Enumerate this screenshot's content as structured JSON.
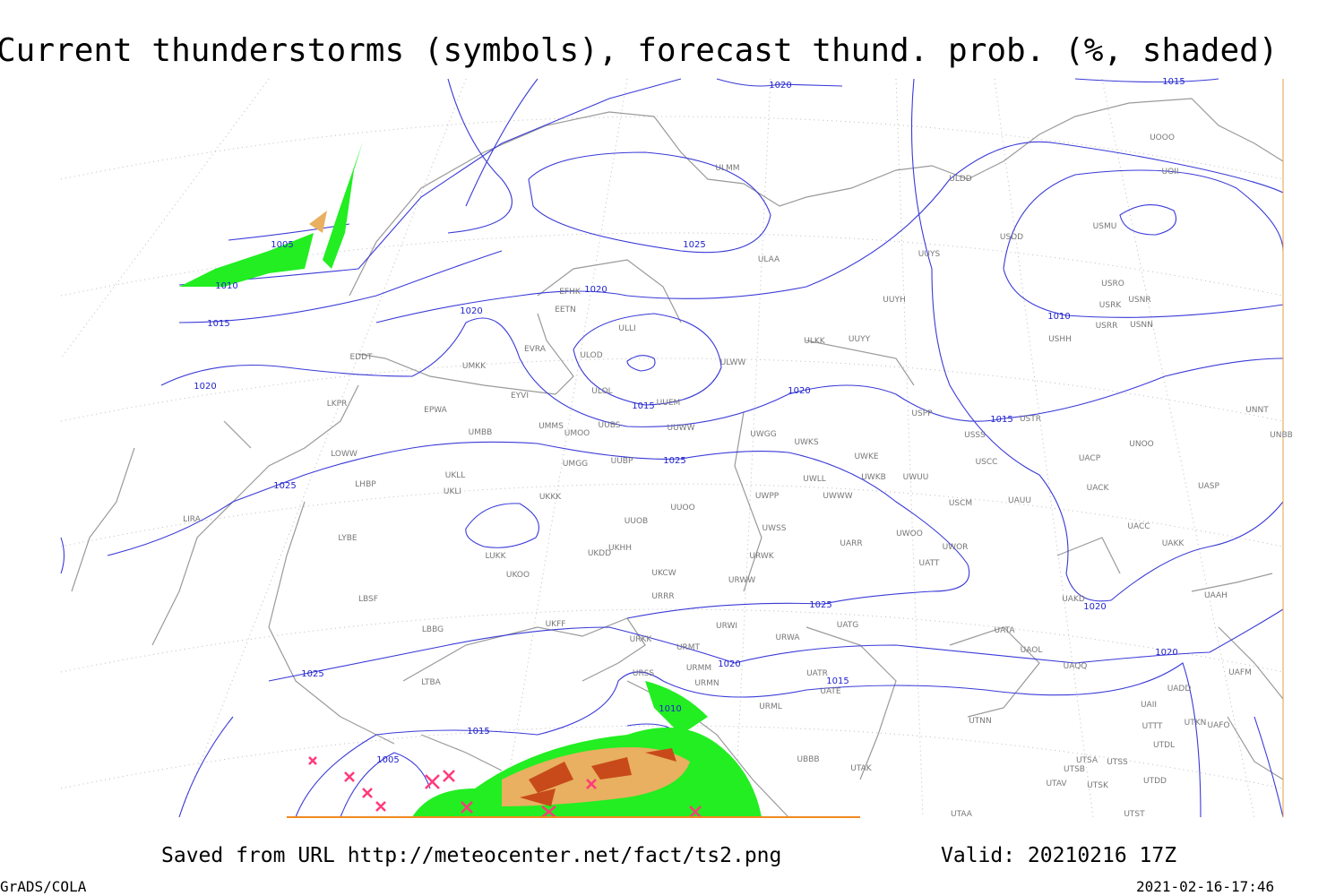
{
  "title": "Current thunderstorms (symbols), forecast thund. prob. (%, shaded)",
  "footer": {
    "source": "Saved from URL http://meteocenter.net/fact/ts2.png",
    "valid": "Valid: 20210216 17Z",
    "software": "GrADS/COLA",
    "timestamp": "2021-02-16-17:46"
  },
  "isobar_labels": [
    1020,
    1015,
    1005,
    1010,
    1015,
    1020,
    1020,
    1025,
    1020,
    1015,
    1020,
    1015,
    1010,
    1025,
    1025,
    1025,
    1020,
    1020,
    1025,
    1020,
    1015,
    1010,
    1015,
    1005
  ],
  "stations": [
    "UOOO",
    "UOII",
    "ULMM",
    "ULDD",
    "USMU",
    "USDD",
    "ULAA",
    "UUYS",
    "USRO",
    "USRK",
    "USNR",
    "EFHK",
    "EETN",
    "UUYH",
    "USRR",
    "USNN",
    "USHH",
    "ULLI",
    "ULKK",
    "UUYY",
    "EVRA",
    "ULOD",
    "ULWW",
    "EDDT",
    "UMKK",
    "ULOL",
    "EYVI",
    "UUEM",
    "EPWA",
    "LKPR",
    "USPP",
    "USTR",
    "UNNT",
    "UMMS",
    "UMOO",
    "UUBS",
    "UUWW",
    "UWGG",
    "UWKS",
    "USSS",
    "UNOO",
    "UNBB",
    "UMBB",
    "LOWW",
    "UUBP",
    "UMGG",
    "UWKE",
    "USCC",
    "UACP",
    "UKLL",
    "UWLL",
    "UWKB",
    "UWUU",
    "UACK",
    "UASP",
    "LHBP",
    "UKLI",
    "UKKK",
    "UWPP",
    "UWWW",
    "USCM",
    "UAUU",
    "LIRA",
    "UUOO",
    "UUOB",
    "UWSS",
    "UACC",
    "LYBE",
    "UKHH",
    "UKDD",
    "UARR",
    "UWOO",
    "UWOR",
    "UAKK",
    "LUKK",
    "URWK",
    "UATT",
    "UKOO",
    "UKCW",
    "URWW",
    "UAKD",
    "UAAH",
    "LBSF",
    "URRR",
    "UKFF",
    "URWI",
    "UATG",
    "LBBG",
    "URKK",
    "UATA",
    "URWA",
    "URMT",
    "UAOL",
    "UAQQ",
    "URMM",
    "UAFM",
    "URSS",
    "UATR",
    "LTBA",
    "URMN",
    "UATE",
    "UADD",
    "URML",
    "UAII",
    "UTNN",
    "UTKN",
    "UAFO",
    "UTTT",
    "UTDL",
    "UBBB",
    "UTAK",
    "UTSA",
    "UTSS",
    "UTSB",
    "UTAV",
    "UTSK",
    "UTDD",
    "UTAA",
    "UTST"
  ]
}
